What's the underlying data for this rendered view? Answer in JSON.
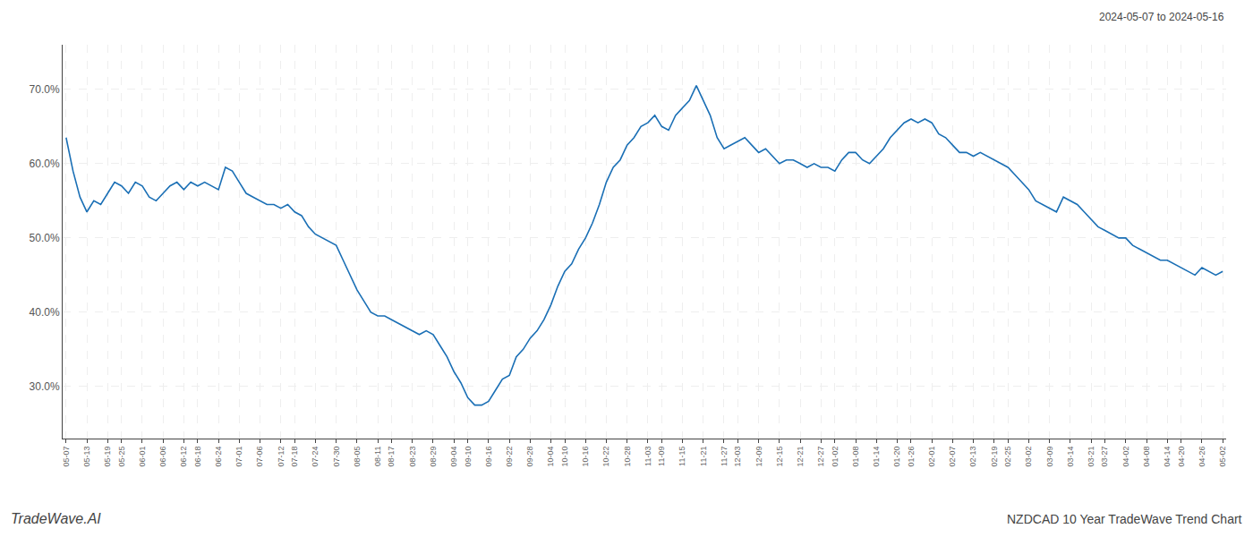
{
  "chart_data": {
    "type": "line",
    "annotations": [
      "2024-05-07 to 2024-05-16",
      "TradeWave.AI",
      "NZDCAD 10 Year TradeWave Trend Chart"
    ],
    "color": "#1a6fb5",
    "grid": true,
    "ylim": [
      23,
      76
    ],
    "yticks": [
      {
        "value": 30,
        "label": "30.0%"
      },
      {
        "value": 40,
        "label": "40.0%"
      },
      {
        "value": 50,
        "label": "50.0%"
      },
      {
        "value": 60,
        "label": "60.0%"
      },
      {
        "value": 70,
        "label": "70.0%"
      }
    ],
    "categories": [
      "05-07",
      null,
      null,
      "05-13",
      null,
      null,
      "05-19",
      null,
      "05-25",
      null,
      null,
      "06-01",
      null,
      null,
      "06-06",
      null,
      null,
      "06-12",
      null,
      "06-18",
      null,
      null,
      "06-24",
      null,
      null,
      "07-01",
      null,
      null,
      "07-06",
      null,
      null,
      "07-12",
      null,
      "07-18",
      null,
      null,
      "07-24",
      null,
      null,
      "07-30",
      null,
      null,
      "08-05",
      null,
      null,
      "08-11",
      null,
      "08-17",
      null,
      null,
      "08-23",
      null,
      null,
      "08-29",
      null,
      null,
      "09-04",
      null,
      "09-10",
      null,
      null,
      "09-16",
      null,
      null,
      "09-22",
      null,
      null,
      "09-28",
      null,
      null,
      "10-04",
      null,
      "10-10",
      null,
      null,
      "10-16",
      null,
      null,
      "10-22",
      null,
      null,
      "10-28",
      null,
      null,
      "11-03",
      null,
      "11-09",
      null,
      null,
      "11-15",
      null,
      null,
      "11-21",
      null,
      null,
      "11-27",
      null,
      "12-03",
      null,
      null,
      "12-09",
      null,
      null,
      "12-15",
      null,
      null,
      "12-21",
      null,
      null,
      "12-27",
      null,
      "01-02",
      null,
      null,
      "01-08",
      null,
      null,
      "01-14",
      null,
      null,
      "01-20",
      null,
      "01-26",
      null,
      null,
      "02-01",
      null,
      null,
      "02-07",
      null,
      null,
      "02-13",
      null,
      null,
      "02-19",
      null,
      "02-25",
      null,
      null,
      "03-02",
      null,
      null,
      "03-09",
      null,
      null,
      "03-14",
      null,
      null,
      "03-21",
      null,
      "03-27",
      null,
      null,
      "04-02",
      null,
      null,
      "04-08",
      null,
      null,
      "04-14",
      null,
      "04-20",
      null,
      null,
      "04-26",
      null,
      null,
      "05-02"
    ],
    "values": [
      63.5,
      59.0,
      55.5,
      53.5,
      55.0,
      54.5,
      56.0,
      57.5,
      57.0,
      56.0,
      57.5,
      57.0,
      55.5,
      55.0,
      56.0,
      57.0,
      57.5,
      56.5,
      57.5,
      57.0,
      57.5,
      57.0,
      56.5,
      59.5,
      59.0,
      57.5,
      56.0,
      55.5,
      55.0,
      54.5,
      54.5,
      54.0,
      54.5,
      53.5,
      53.0,
      51.5,
      50.5,
      50.0,
      49.5,
      49.0,
      47.0,
      45.0,
      43.0,
      41.5,
      40.0,
      39.5,
      39.5,
      39.0,
      38.5,
      38.0,
      37.5,
      37.0,
      37.5,
      37.0,
      35.5,
      34.0,
      32.0,
      30.5,
      28.5,
      27.5,
      27.5,
      28.0,
      29.5,
      31.0,
      31.5,
      34.0,
      35.0,
      36.5,
      37.5,
      39.0,
      41.0,
      43.5,
      45.5,
      46.5,
      48.5,
      50.0,
      52.0,
      54.5,
      57.5,
      59.5,
      60.5,
      62.5,
      63.5,
      65.0,
      65.5,
      66.5,
      65.0,
      64.5,
      66.5,
      67.5,
      68.5,
      70.5,
      68.5,
      66.5,
      63.5,
      62.0,
      62.5,
      63.0,
      63.5,
      62.5,
      61.5,
      62.0,
      61.0,
      60.0,
      60.5,
      60.5,
      60.0,
      59.5,
      60.0,
      59.5,
      59.5,
      59.0,
      60.5,
      61.5,
      61.5,
      60.5,
      60.0,
      61.0,
      62.0,
      63.5,
      64.5,
      65.5,
      66.0,
      65.5,
      66.0,
      65.5,
      64.0,
      63.5,
      62.5,
      61.5,
      61.5,
      61.0,
      61.5,
      61.0,
      60.5,
      60.0,
      59.5,
      58.5,
      57.5,
      56.5,
      55.0,
      54.5,
      54.0,
      53.5,
      55.5,
      55.0,
      54.5,
      53.5,
      52.5,
      51.5,
      51.0,
      50.5,
      50.0,
      50.0,
      49.0,
      48.5,
      48.0,
      47.5,
      47.0,
      47.0,
      46.5,
      46.0,
      45.5,
      45.0,
      46.0,
      45.5,
      45.0,
      45.5
    ]
  }
}
